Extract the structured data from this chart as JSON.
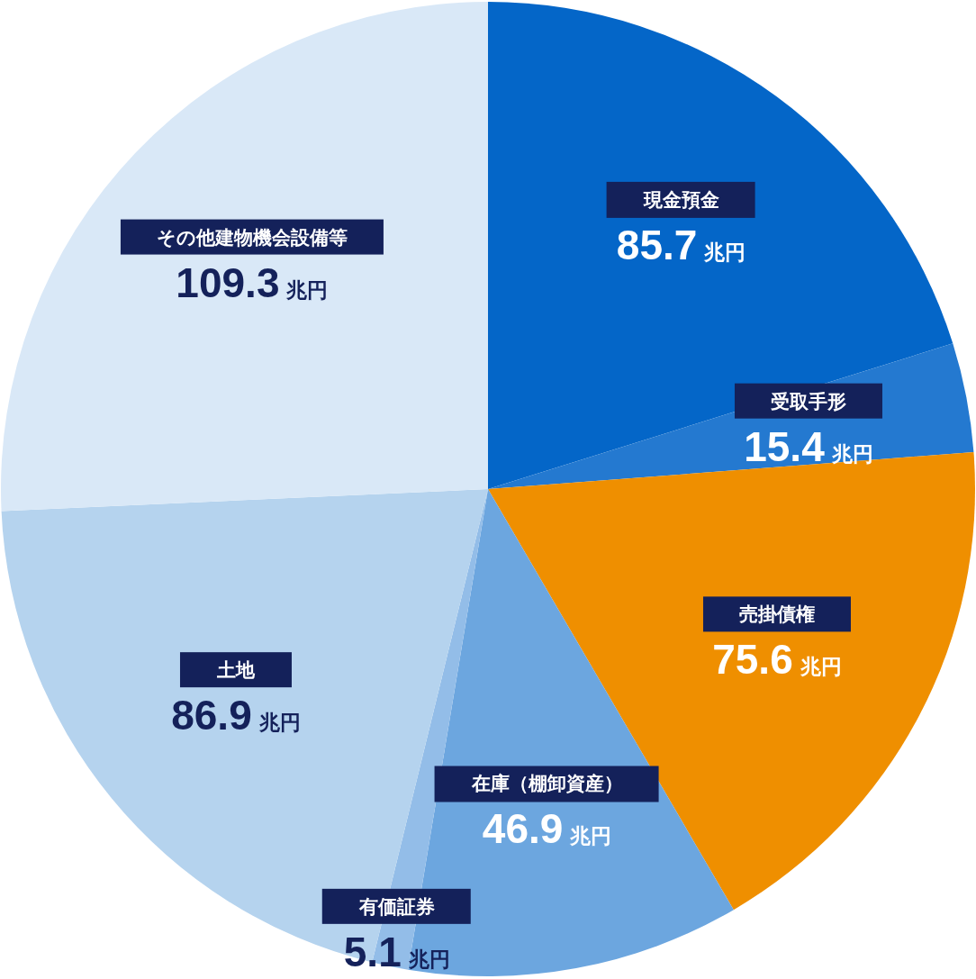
{
  "chart_data": {
    "type": "pie",
    "categories": [
      "現金預金",
      "受取手形",
      "売掛債権",
      "在庫（棚卸資産）",
      "有価証券",
      "土地",
      "その他建物機会設備等"
    ],
    "values": [
      85.7,
      15.4,
      75.6,
      46.9,
      5.1,
      86.9,
      109.3
    ],
    "colors": [
      "#0466c8",
      "#2479d0",
      "#ef8f00",
      "#6ca6df",
      "#93bde8",
      "#b5d3ee",
      "#d9e8f7"
    ],
    "value_labels": [
      "85.7 兆円",
      "15.4 兆円",
      "75.6 兆円",
      "46.9 兆円",
      "5.1 兆円",
      "86.9 兆円",
      "109.3 兆円"
    ]
  }
}
